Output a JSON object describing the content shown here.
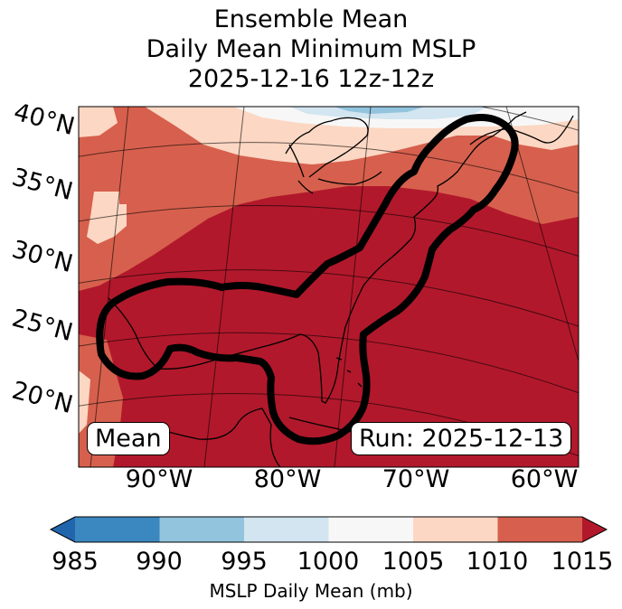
{
  "title": {
    "line1": "Ensemble Mean",
    "line2": "Daily Mean Minimum MSLP",
    "line3": "2025-12-16 12z-12z"
  },
  "map": {
    "lat_labels": [
      "40°N",
      "35°N",
      "30°N",
      "25°N",
      "20°N"
    ],
    "lon_labels": [
      "90°W",
      "80°W",
      "70°W",
      "60°W"
    ],
    "left_box": "Mean",
    "right_box": "Run: 2025-12-13",
    "field_units": "mb"
  },
  "colorbar": {
    "label": "MSLP Daily Mean (mb)",
    "ticks": [
      "985",
      "990",
      "995",
      "1000",
      "1005",
      "1010",
      "1015"
    ],
    "bins": [
      {
        "range": "985-990",
        "color": "#3b87c0"
      },
      {
        "range": "990-995",
        "color": "#92c4de"
      },
      {
        "range": "995-1000",
        "color": "#d2e5f0"
      },
      {
        "range": "1000-1005",
        "color": "#f7f7f7"
      },
      {
        "range": "1005-1010",
        "color": "#fcd7c3"
      },
      {
        "range": "1010-1015",
        "color": "#d6604d"
      }
    ],
    "under_color": "#2166ac",
    "over_color": "#b2182b"
  }
}
